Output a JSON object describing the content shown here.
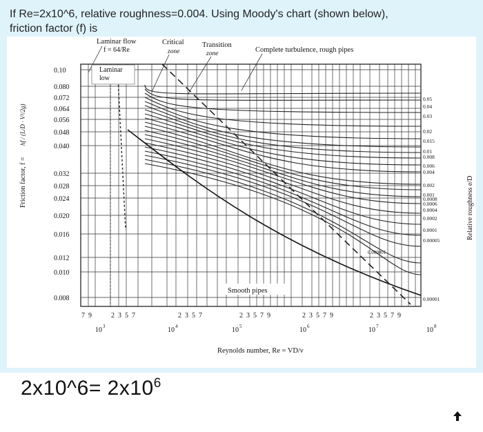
{
  "question": {
    "line1": "If Re=2x10^6, relative roughness=0.004. Using Moody's chart (shown below),",
    "line2": "friction factor (f) is"
  },
  "chart": {
    "zones": {
      "laminar_flow_line1": "Laminar flow",
      "laminar_flow_line2": "f = 64/Re",
      "critical_line1": "Critical",
      "critical_line2": "zone",
      "transition_line1": "Transition",
      "transition_line2": "zone",
      "complete": "Complete turbulence, rough pipes",
      "laminar_box_line1": "Laminar",
      "laminar_box_line2": "low",
      "smooth": "Smooth pipes"
    },
    "y_ticks": [
      "0.10",
      "0.080",
      "0.072",
      "0.064",
      "0.056",
      "0.048",
      "0.040",
      "0.032",
      "0.028",
      "0.024",
      "0.020",
      "0.016",
      "0.012",
      "0.010",
      "0.008"
    ],
    "y_label": "Friction factor, f =",
    "y_label_formula": "hf / (L/D · V²/2g)",
    "roughness_labels": [
      "0.05",
      "0.04",
      "0.03",
      "0.02",
      "0.015",
      "0.01",
      "0.008",
      "0.006",
      "0.004",
      "0.002",
      "0.001",
      "0.0008",
      "0.0006",
      "0.0004",
      "0.0002",
      "0.0001",
      "0.00005",
      "0.000001",
      "0.00001"
    ],
    "right_label": "Relative roughness e/D",
    "x_minor_groups": [
      "7  9",
      "2  3  5  7",
      "2  3  5  7",
      "2  3  5  7  9",
      "2  3  5  7  9",
      "2  3  5  7  9"
    ],
    "x_decades": [
      {
        "base": "10",
        "exp": "3"
      },
      {
        "base": "10",
        "exp": "4"
      },
      {
        "base": "10",
        "exp": "5"
      },
      {
        "base": "10",
        "exp": "6"
      },
      {
        "base": "10",
        "exp": "7"
      },
      {
        "base": "10",
        "exp": "8"
      }
    ],
    "x_label": "Reynolds number, Re = VD/ν"
  },
  "answer": {
    "left": "2x10^6= 2x10",
    "exp": "6"
  },
  "icons": {
    "scroll": "arrow-up-icon"
  }
}
